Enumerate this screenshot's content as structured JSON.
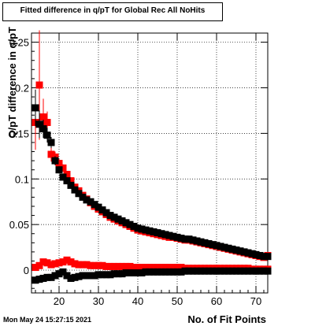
{
  "footer": {
    "timestamp": "Mon May 24 15:27:15 2021"
  },
  "chart_data": {
    "type": "scatter",
    "title": "Fitted difference in q/pT for Global Rec All NoHits",
    "xlabel": "No. of Fit Points",
    "ylabel": "Q/pT difference in q/pT",
    "xlim": [
      13,
      73
    ],
    "ylim": [
      -0.025,
      0.26
    ],
    "xticks": [
      "20",
      "30",
      "40",
      "50",
      "60",
      "70"
    ],
    "yticks": [
      "0",
      "0.05",
      "0.1",
      "0.15",
      "0.2",
      "0.25"
    ],
    "grid": true,
    "marker": "square",
    "colors": {
      "red_series": "#ff0000",
      "black_series": "#000000",
      "frame": "#000000"
    },
    "series": [
      {
        "color": "#ff0000",
        "x": [
          14,
          15,
          16,
          17,
          18,
          19,
          20,
          21,
          22,
          23,
          24,
          25,
          26,
          27,
          28,
          29,
          30,
          31,
          32,
          33,
          34,
          35,
          36,
          37,
          38,
          39,
          40,
          41,
          42,
          43,
          44,
          45,
          46,
          47,
          48,
          49,
          50,
          51,
          52,
          53,
          54,
          55,
          56,
          57,
          58,
          59,
          60,
          61,
          62,
          63,
          64,
          65,
          66,
          67,
          68,
          69,
          70,
          71,
          72,
          73
        ],
        "y": [
          0.162,
          0.203,
          0.168,
          0.162,
          0.127,
          0.124,
          0.117,
          0.112,
          0.105,
          0.098,
          0.091,
          0.087,
          0.082,
          0.078,
          0.074,
          0.07,
          0.067,
          0.064,
          0.061,
          0.058,
          0.056,
          0.054,
          0.052,
          0.05,
          0.048,
          0.046,
          0.044,
          0.043,
          0.042,
          0.041,
          0.04,
          0.039,
          0.038,
          0.037,
          0.036,
          0.036,
          0.035,
          0.034,
          0.033,
          0.033,
          0.032,
          0.031,
          0.03,
          0.029,
          0.028,
          0.027,
          0.026,
          0.025,
          0.024,
          0.023,
          0.022,
          0.021,
          0.02,
          0.019,
          0.018,
          0.017,
          0.016,
          0.015,
          0.014,
          0.016
        ],
        "err": [
          0.03,
          0.06,
          0.02,
          0.012,
          0.008,
          0.006,
          0.005,
          0.004,
          0.003,
          0.003,
          0.002,
          0.002,
          0.002,
          0.002,
          0.002,
          0.002,
          0.002,
          0.002,
          0.002,
          0.002,
          0.002,
          0.002,
          0.002,
          0.002,
          0.002,
          0.002,
          0.002,
          0.002,
          0.002,
          0.002,
          0.002,
          0.002,
          0.002,
          0.002,
          0.002,
          0.002,
          0.002,
          0.002,
          0.002,
          0.002,
          0.002,
          0.002,
          0.002,
          0.002,
          0.002,
          0.002,
          0.002,
          0.002,
          0.002,
          0.002,
          0.002,
          0.002,
          0.002,
          0.002,
          0.002,
          0.002,
          0.002,
          0.002,
          0.002,
          0.002
        ]
      },
      {
        "color": "#000000",
        "x": [
          14,
          15,
          16,
          17,
          18,
          19,
          20,
          21,
          22,
          23,
          24,
          25,
          26,
          27,
          28,
          29,
          30,
          31,
          32,
          33,
          34,
          35,
          36,
          37,
          38,
          39,
          40,
          41,
          42,
          43,
          44,
          45,
          46,
          47,
          48,
          49,
          50,
          51,
          52,
          53,
          54,
          55,
          56,
          57,
          58,
          59,
          60,
          61,
          62,
          63,
          64,
          65,
          66,
          67,
          68,
          69,
          70,
          71,
          72,
          73
        ],
        "y": [
          0.178,
          0.16,
          0.155,
          0.148,
          0.14,
          0.12,
          0.11,
          0.102,
          0.098,
          0.093,
          0.088,
          0.084,
          0.08,
          0.077,
          0.075,
          0.072,
          0.069,
          0.066,
          0.063,
          0.06,
          0.058,
          0.056,
          0.054,
          0.052,
          0.05,
          0.048,
          0.046,
          0.045,
          0.044,
          0.043,
          0.042,
          0.041,
          0.04,
          0.039,
          0.038,
          0.037,
          0.036,
          0.035,
          0.034,
          0.034,
          0.033,
          0.032,
          0.031,
          0.03,
          0.029,
          0.028,
          0.027,
          0.026,
          0.025,
          0.024,
          0.023,
          0.022,
          0.021,
          0.02,
          0.019,
          0.018,
          0.017,
          0.016,
          0.015,
          0.015
        ],
        "err": [
          0.02,
          0.015,
          0.01,
          0.008,
          0.006,
          0.005,
          0.004,
          0.003,
          0.003,
          0.002,
          0.002,
          0.002,
          0.002,
          0.002,
          0.002,
          0.002,
          0.002,
          0.002,
          0.002,
          0.002,
          0.002,
          0.002,
          0.002,
          0.002,
          0.002,
          0.002,
          0.002,
          0.002,
          0.002,
          0.002,
          0.002,
          0.002,
          0.002,
          0.002,
          0.002,
          0.002,
          0.002,
          0.002,
          0.002,
          0.002,
          0.002,
          0.002,
          0.002,
          0.002,
          0.002,
          0.002,
          0.002,
          0.002,
          0.002,
          0.002,
          0.002,
          0.002,
          0.002,
          0.002,
          0.002,
          0.002,
          0.002,
          0.002,
          0.002,
          0.002
        ]
      },
      {
        "color": "#ff0000",
        "x": [
          14,
          15,
          16,
          17,
          18,
          19,
          20,
          21,
          22,
          23,
          24,
          25,
          26,
          27,
          28,
          29,
          30,
          31,
          32,
          33,
          34,
          35,
          36,
          37,
          38,
          39,
          40,
          41,
          42,
          43,
          44,
          45,
          46,
          47,
          48,
          49,
          50,
          51,
          52,
          53,
          54,
          55,
          56,
          57,
          58,
          59,
          60,
          61,
          62,
          63,
          64,
          65,
          66,
          67,
          68,
          69,
          70,
          71,
          72,
          73
        ],
        "y": [
          0.003,
          0.005,
          0.009,
          0.008,
          0.006,
          0.007,
          0.008,
          0.009,
          0.011,
          0.009,
          0.007,
          0.006,
          0.006,
          0.006,
          0.005,
          0.005,
          0.005,
          0.005,
          0.004,
          0.004,
          0.004,
          0.004,
          0.004,
          0.004,
          0.004,
          0.003,
          0.003,
          0.003,
          0.003,
          0.003,
          0.003,
          0.003,
          0.003,
          0.003,
          0.003,
          0.003,
          0.003,
          0.003,
          0.002,
          0.002,
          0.002,
          0.002,
          0.002,
          0.002,
          0.002,
          0.002,
          0.002,
          0.002,
          0.002,
          0.002,
          0.002,
          0.002,
          0.002,
          0.002,
          0.002,
          0.001,
          0.001,
          0.001,
          0.001,
          0.001
        ],
        "err": [
          0.003,
          0.003,
          0.002,
          0.002,
          0.002,
          0.002,
          0.002,
          0.002,
          0.002,
          0.002,
          0.001,
          0.001,
          0.001,
          0.001,
          0.001,
          0.001,
          0.001,
          0.001,
          0.001,
          0.001,
          0.001,
          0.001,
          0.001,
          0.001,
          0.001,
          0.001,
          0.001,
          0.001,
          0.001,
          0.001,
          0.001,
          0.001,
          0.001,
          0.001,
          0.001,
          0.001,
          0.001,
          0.001,
          0.001,
          0.001,
          0.001,
          0.001,
          0.001,
          0.001,
          0.001,
          0.001,
          0.001,
          0.001,
          0.001,
          0.001,
          0.001,
          0.001,
          0.001,
          0.001,
          0.001,
          0.001,
          0.001,
          0.001,
          0.001,
          0.001
        ]
      },
      {
        "color": "#000000",
        "x": [
          14,
          15,
          16,
          17,
          18,
          19,
          20,
          21,
          22,
          23,
          24,
          25,
          26,
          27,
          28,
          29,
          30,
          31,
          32,
          33,
          34,
          35,
          36,
          37,
          38,
          39,
          40,
          41,
          42,
          43,
          44,
          45,
          46,
          47,
          48,
          49,
          50,
          51,
          52,
          53,
          54,
          55,
          56,
          57,
          58,
          59,
          60,
          61,
          62,
          63,
          64,
          65,
          66,
          67,
          68,
          69,
          70,
          71,
          72,
          73
        ],
        "y": [
          -0.011,
          -0.01,
          -0.009,
          -0.008,
          -0.008,
          -0.006,
          -0.004,
          -0.002,
          -0.006,
          -0.009,
          -0.008,
          -0.007,
          -0.006,
          -0.006,
          -0.006,
          -0.006,
          -0.005,
          -0.005,
          -0.005,
          -0.005,
          -0.004,
          -0.004,
          -0.004,
          -0.003,
          -0.003,
          -0.003,
          -0.003,
          -0.003,
          -0.002,
          -0.002,
          -0.002,
          -0.002,
          -0.002,
          -0.002,
          -0.002,
          -0.002,
          -0.002,
          -0.002,
          -0.001,
          -0.001,
          -0.001,
          -0.001,
          -0.001,
          -0.001,
          -0.001,
          -0.001,
          -0.001,
          -0.001,
          -0.001,
          -0.001,
          -0.001,
          -0.001,
          -0.001,
          -0.001,
          -0.001,
          -0.001,
          -0.001,
          -0.001,
          -0.001,
          -0.001
        ],
        "err": [
          0.002,
          0.002,
          0.002,
          0.002,
          0.002,
          0.002,
          0.002,
          0.001,
          0.001,
          0.001,
          0.001,
          0.001,
          0.001,
          0.001,
          0.001,
          0.001,
          0.001,
          0.001,
          0.001,
          0.001,
          0.001,
          0.001,
          0.001,
          0.001,
          0.001,
          0.001,
          0.001,
          0.001,
          0.001,
          0.001,
          0.001,
          0.001,
          0.001,
          0.001,
          0.001,
          0.001,
          0.001,
          0.001,
          0.001,
          0.001,
          0.001,
          0.001,
          0.001,
          0.001,
          0.001,
          0.001,
          0.001,
          0.001,
          0.001,
          0.001,
          0.001,
          0.001,
          0.001,
          0.001,
          0.001,
          0.001,
          0.001,
          0.001,
          0.001,
          0.001
        ]
      }
    ]
  }
}
